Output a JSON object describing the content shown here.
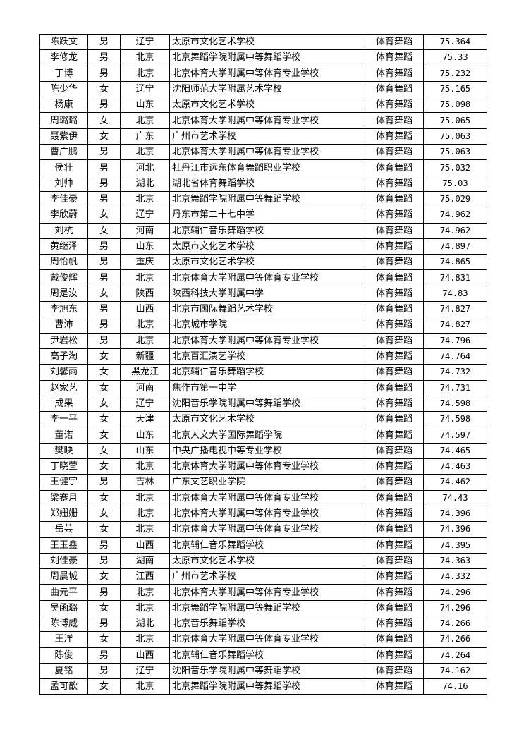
{
  "rows": [
    [
      "陈跃文",
      "男",
      "辽宁",
      "太原市文化艺术学校",
      "体育舞蹈",
      "75.364"
    ],
    [
      "李修龙",
      "男",
      "北京",
      "北京舞蹈学院附属中等舞蹈学校",
      "体育舞蹈",
      "75.33"
    ],
    [
      "丁博",
      "男",
      "北京",
      "北京体育大学附属中等体育专业学校",
      "体育舞蹈",
      "75.232"
    ],
    [
      "陈少华",
      "女",
      "辽宁",
      "沈阳师范大学附属艺术学校",
      "体育舞蹈",
      "75.165"
    ],
    [
      "杨康",
      "男",
      "山东",
      "太原市文化艺术学校",
      "体育舞蹈",
      "75.098"
    ],
    [
      "周璐璐",
      "女",
      "北京",
      "北京体育大学附属中等体育专业学校",
      "体育舞蹈",
      "75.065"
    ],
    [
      "聂紫伊",
      "女",
      "广东",
      "广州市艺术学校",
      "体育舞蹈",
      "75.063"
    ],
    [
      "曹广鹏",
      "男",
      "北京",
      "北京体育大学附属中等体育专业学校",
      "体育舞蹈",
      "75.063"
    ],
    [
      "侯壮",
      "男",
      "河北",
      "牡丹江市远东体育舞蹈职业学校",
      "体育舞蹈",
      "75.032"
    ],
    [
      "刘帅",
      "男",
      "湖北",
      "湖北省体育舞蹈学校",
      "体育舞蹈",
      "75.03"
    ],
    [
      "李佳豪",
      "男",
      "北京",
      "北京舞蹈学院附属中等舞蹈学校",
      "体育舞蹈",
      "75.029"
    ],
    [
      "李欣蔚",
      "女",
      "辽宁",
      "丹东市第二十七中学",
      "体育舞蹈",
      "74.962"
    ],
    [
      "刘杭",
      "女",
      "河南",
      "北京辅仁音乐舞蹈学校",
      "体育舞蹈",
      "74.962"
    ],
    [
      "黄继泽",
      "男",
      "山东",
      "太原市文化艺术学校",
      "体育舞蹈",
      "74.897"
    ],
    [
      "周怡帆",
      "男",
      "重庆",
      "太原市文化艺术学校",
      "体育舞蹈",
      "74.865"
    ],
    [
      "戴俊辉",
      "男",
      "北京",
      "北京体育大学附属中等体育专业学校",
      "体育舞蹈",
      "74.831"
    ],
    [
      "周是汝",
      "女",
      "陕西",
      "陕西科技大学附属中学",
      "体育舞蹈",
      "74.83"
    ],
    [
      "李旭东",
      "男",
      "山西",
      "北京市国际舞蹈艺术学校",
      "体育舞蹈",
      "74.827"
    ],
    [
      "曹沛",
      "男",
      "北京",
      "北京城市学院",
      "体育舞蹈",
      "74.827"
    ],
    [
      "尹岩松",
      "男",
      "北京",
      "北京体育大学附属中等体育专业学校",
      "体育舞蹈",
      "74.796"
    ],
    [
      "高子淘",
      "女",
      "新疆",
      "北京百汇演艺学校",
      "体育舞蹈",
      "74.764"
    ],
    [
      "刘馨雨",
      "女",
      "黑龙江",
      "北京辅仁音乐舞蹈学校",
      "体育舞蹈",
      "74.732"
    ],
    [
      "赵家艺",
      "女",
      "河南",
      "焦作市第一中学",
      "体育舞蹈",
      "74.731"
    ],
    [
      "成果",
      "女",
      "辽宁",
      "沈阳音乐学院附属中等舞蹈学校",
      "体育舞蹈",
      "74.598"
    ],
    [
      "李一平",
      "女",
      "天津",
      "太原市文化艺术学校",
      "体育舞蹈",
      "74.598"
    ],
    [
      "董诺",
      "女",
      "山东",
      "北京人文大学国际舞蹈学院",
      "体育舞蹈",
      "74.597"
    ],
    [
      "樊映",
      "女",
      "山东",
      "中央广播电视中等专业学校",
      "体育舞蹈",
      "74.465"
    ],
    [
      "丁晓萱",
      "女",
      "北京",
      "北京体育大学附属中等体育专业学校",
      "体育舞蹈",
      "74.463"
    ],
    [
      "王健宇",
      "男",
      "吉林",
      "广东文艺职业学院",
      "体育舞蹈",
      "74.462"
    ],
    [
      "梁蹇月",
      "女",
      "北京",
      "北京体育大学附属中等体育专业学校",
      "体育舞蹈",
      "74.43"
    ],
    [
      "郑姗姗",
      "女",
      "北京",
      "北京体育大学附属中等体育专业学校",
      "体育舞蹈",
      "74.396"
    ],
    [
      "岳芸",
      "女",
      "北京",
      "北京体育大学附属中等体育专业学校",
      "体育舞蹈",
      "74.396"
    ],
    [
      "王玉鑫",
      "男",
      "山西",
      "北京辅仁音乐舞蹈学校",
      "体育舞蹈",
      "74.395"
    ],
    [
      "刘佳豪",
      "男",
      "湖南",
      "太原市文化艺术学校",
      "体育舞蹈",
      "74.363"
    ],
    [
      "周晨城",
      "女",
      "江西",
      "广州市艺术学校",
      "体育舞蹈",
      "74.332"
    ],
    [
      "曲元平",
      "男",
      "北京",
      "北京体育大学附属中等体育专业学校",
      "体育舞蹈",
      "74.296"
    ],
    [
      "吴函璐",
      "女",
      "北京",
      "北京舞蹈学院附属中等舞蹈学校",
      "体育舞蹈",
      "74.296"
    ],
    [
      "陈博威",
      "男",
      "湖北",
      "北京音乐舞蹈学校",
      "体育舞蹈",
      "74.266"
    ],
    [
      "王洋",
      "女",
      "北京",
      "北京体育大学附属中等体育专业学校",
      "体育舞蹈",
      "74.266"
    ],
    [
      "陈俊",
      "男",
      "山西",
      "北京辅仁音乐舞蹈学校",
      "体育舞蹈",
      "74.264"
    ],
    [
      "夏铭",
      "男",
      "辽宁",
      "沈阳音乐学院附属中等舞蹈学校",
      "体育舞蹈",
      "74.162"
    ],
    [
      "孟可歆",
      "女",
      "北京",
      "北京舞蹈学院附属中等舞蹈学校",
      "体育舞蹈",
      "74.16"
    ]
  ]
}
